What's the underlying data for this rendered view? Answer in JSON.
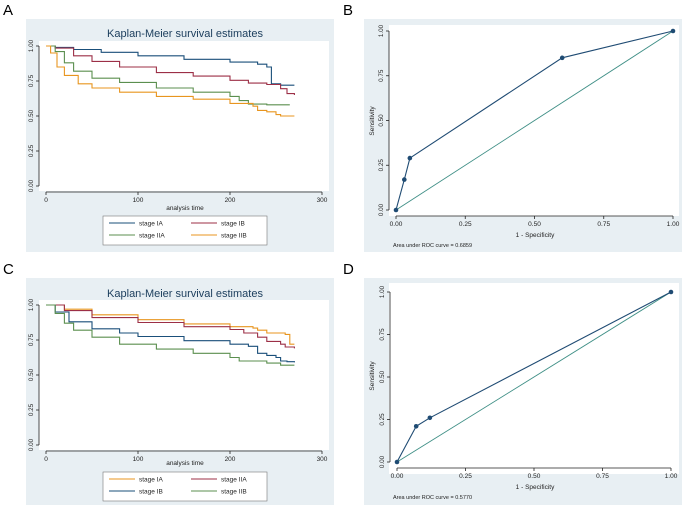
{
  "colors": {
    "panel_bg": "#e8eff3",
    "plot_bg": "#ffffff",
    "title_color": "#1b3d5c",
    "axis_color": "#222222",
    "roc_color": "#1f4b73",
    "diag_color": "#3f8f86",
    "IA": "#1a4f7a",
    "IB": "#9c2f46",
    "IIA": "#5b8f4f",
    "IIB": "#e8951f"
  },
  "chart_data": [
    {
      "id": "A",
      "type": "line",
      "panel_label": "A",
      "title": "Kaplan-Meier survival estimates",
      "xlabel": "analysis time",
      "ylabel": "",
      "xlim": [
        0,
        300
      ],
      "ylim": [
        0,
        1
      ],
      "xticks": [
        0,
        100,
        200,
        300
      ],
      "yticks": [
        0,
        0.25,
        0.5,
        0.75,
        1
      ],
      "ytick_labels": [
        "0.00",
        "0.25",
        "0.50",
        "0.75",
        "1.00"
      ],
      "legend_layout": "2x2 below plot",
      "series": [
        {
          "name": "stage IA",
          "color_key": "IA",
          "points": [
            [
              0,
              1
            ],
            [
              10,
              0.99
            ],
            [
              30,
              0.975
            ],
            [
              60,
              0.955
            ],
            [
              100,
              0.93
            ],
            [
              150,
              0.905
            ],
            [
              200,
              0.885
            ],
            [
              230,
              0.87
            ],
            [
              240,
              0.85
            ],
            [
              245,
              0.73
            ],
            [
              255,
              0.72
            ],
            [
              270,
              0.72
            ]
          ]
        },
        {
          "name": "stage IB",
          "color_key": "IB",
          "points": [
            [
              0,
              1
            ],
            [
              10,
              0.985
            ],
            [
              30,
              0.93
            ],
            [
              50,
              0.89
            ],
            [
              80,
              0.85
            ],
            [
              120,
              0.81
            ],
            [
              160,
              0.785
            ],
            [
              200,
              0.755
            ],
            [
              220,
              0.735
            ],
            [
              240,
              0.725
            ],
            [
              255,
              0.695
            ],
            [
              262,
              0.66
            ],
            [
              270,
              0.65
            ]
          ]
        },
        {
          "name": "stage IIA",
          "color_key": "IIA",
          "points": [
            [
              0,
              1
            ],
            [
              10,
              0.96
            ],
            [
              20,
              0.88
            ],
            [
              30,
              0.82
            ],
            [
              50,
              0.77
            ],
            [
              80,
              0.74
            ],
            [
              120,
              0.7
            ],
            [
              160,
              0.67
            ],
            [
              200,
              0.64
            ],
            [
              210,
              0.61
            ],
            [
              220,
              0.585
            ],
            [
              240,
              0.58
            ],
            [
              265,
              0.58
            ]
          ]
        },
        {
          "name": "stage IIB",
          "color_key": "IIB",
          "points": [
            [
              0,
              1
            ],
            [
              5,
              0.95
            ],
            [
              12,
              0.85
            ],
            [
              20,
              0.79
            ],
            [
              35,
              0.73
            ],
            [
              50,
              0.7
            ],
            [
              80,
              0.67
            ],
            [
              120,
              0.64
            ],
            [
              160,
              0.62
            ],
            [
              200,
              0.59
            ],
            [
              225,
              0.57
            ],
            [
              230,
              0.54
            ],
            [
              240,
              0.53
            ],
            [
              250,
              0.51
            ],
            [
              255,
              0.5
            ],
            [
              270,
              0.5
            ]
          ]
        }
      ]
    },
    {
      "id": "B",
      "type": "line",
      "panel_label": "B",
      "title": "",
      "xlabel": "1 - Specificity",
      "ylabel": "Sensitivity",
      "xlim": [
        0,
        1
      ],
      "ylim": [
        0,
        1
      ],
      "xticks": [
        0,
        0.25,
        0.5,
        0.75,
        1
      ],
      "yticks": [
        0,
        0.25,
        0.5,
        0.75,
        1
      ],
      "xtick_labels": [
        "0.00",
        "0.25",
        "0.50",
        "0.75",
        "1.00"
      ],
      "ytick_labels": [
        "0.00",
        "0.25",
        "0.50",
        "0.75",
        "1.00"
      ],
      "roc_points": [
        [
          0,
          0
        ],
        [
          0.03,
          0.17
        ],
        [
          0.05,
          0.29
        ],
        [
          0.6,
          0.85
        ],
        [
          1,
          1
        ]
      ],
      "reference_line": [
        [
          0,
          0
        ],
        [
          1,
          1
        ]
      ],
      "note": "Area under ROC curve = 0.6859"
    },
    {
      "id": "C",
      "type": "line",
      "panel_label": "C",
      "title": "Kaplan-Meier survival estimates",
      "xlabel": "analysis time",
      "ylabel": "",
      "xlim": [
        0,
        300
      ],
      "ylim": [
        0,
        1
      ],
      "xticks": [
        0,
        100,
        200,
        300
      ],
      "yticks": [
        0,
        0.25,
        0.5,
        0.75,
        1
      ],
      "ytick_labels": [
        "0.00",
        "0.25",
        "0.50",
        "0.75",
        "1.00"
      ],
      "legend_layout": "2x2 below plot",
      "series": [
        {
          "name": "stage IA",
          "color_key": "IIB",
          "points": [
            [
              0,
              1
            ],
            [
              20,
              0.97
            ],
            [
              50,
              0.93
            ],
            [
              100,
              0.895
            ],
            [
              150,
              0.865
            ],
            [
              200,
              0.845
            ],
            [
              225,
              0.835
            ],
            [
              230,
              0.82
            ],
            [
              240,
              0.8
            ],
            [
              260,
              0.79
            ],
            [
              265,
              0.72
            ],
            [
              270,
              0.72
            ]
          ]
        },
        {
          "name": "stage IIA",
          "color_key": "IB",
          "points": [
            [
              0,
              1
            ],
            [
              20,
              0.96
            ],
            [
              50,
              0.91
            ],
            [
              100,
              0.875
            ],
            [
              150,
              0.845
            ],
            [
              200,
              0.825
            ],
            [
              215,
              0.8
            ],
            [
              230,
              0.77
            ],
            [
              240,
              0.74
            ],
            [
              255,
              0.72
            ],
            [
              260,
              0.7
            ],
            [
              270,
              0.69
            ]
          ]
        },
        {
          "name": "stage IB",
          "color_key": "IA",
          "points": [
            [
              0,
              1
            ],
            [
              10,
              0.95
            ],
            [
              25,
              0.88
            ],
            [
              50,
              0.83
            ],
            [
              80,
              0.8
            ],
            [
              100,
              0.775
            ],
            [
              150,
              0.745
            ],
            [
              200,
              0.72
            ],
            [
              220,
              0.705
            ],
            [
              230,
              0.655
            ],
            [
              240,
              0.64
            ],
            [
              250,
              0.625
            ],
            [
              255,
              0.6
            ],
            [
              262,
              0.595
            ],
            [
              270,
              0.59
            ]
          ]
        },
        {
          "name": "stage IIB",
          "color_key": "IIA",
          "points": [
            [
              0,
              1
            ],
            [
              10,
              0.94
            ],
            [
              20,
              0.87
            ],
            [
              30,
              0.82
            ],
            [
              50,
              0.77
            ],
            [
              80,
              0.72
            ],
            [
              120,
              0.685
            ],
            [
              160,
              0.655
            ],
            [
              200,
              0.625
            ],
            [
              210,
              0.6
            ],
            [
              240,
              0.585
            ],
            [
              255,
              0.57
            ],
            [
              270,
              0.57
            ]
          ]
        }
      ]
    },
    {
      "id": "D",
      "type": "line",
      "panel_label": "D",
      "title": "",
      "xlabel": "1 - Specificity",
      "ylabel": "Sensitivity",
      "xlim": [
        0,
        1
      ],
      "ylim": [
        0,
        1
      ],
      "xticks": [
        0,
        0.25,
        0.5,
        0.75,
        1
      ],
      "yticks": [
        0,
        0.25,
        0.5,
        0.75,
        1
      ],
      "xtick_labels": [
        "0.00",
        "0.25",
        "0.50",
        "0.75",
        "1.00"
      ],
      "ytick_labels": [
        "0.00",
        "0.25",
        "0.50",
        "0.75",
        "1.00"
      ],
      "roc_points": [
        [
          0,
          0
        ],
        [
          0.07,
          0.21
        ],
        [
          0.12,
          0.26
        ],
        [
          1,
          1
        ]
      ],
      "reference_line": [
        [
          0,
          0
        ],
        [
          1,
          1
        ]
      ],
      "note": "Area under ROC curve = 0.5770"
    }
  ]
}
